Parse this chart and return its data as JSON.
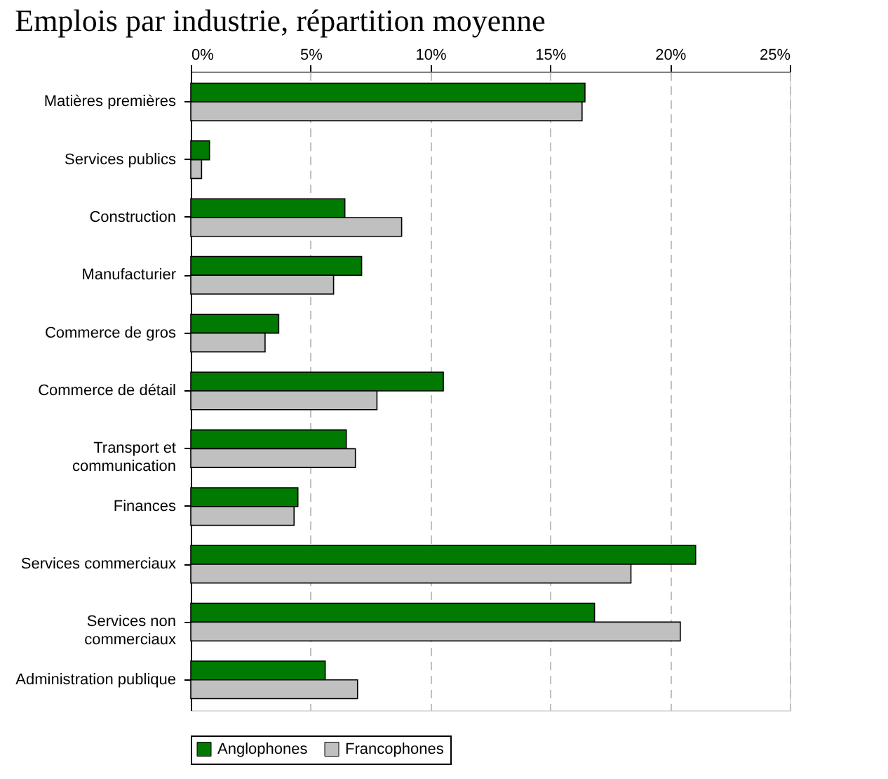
{
  "chart_data": {
    "type": "bar",
    "orientation": "horizontal",
    "title": "Emplois par industrie, répartition moyenne",
    "categories": [
      "Matières premières",
      "Services publics",
      "Construction",
      "Manufacturier",
      "Commerce de gros",
      "Commerce de détail",
      "Transport et\ncommunication",
      "Finances",
      "Services commerciaux",
      "Services non\ncommerciaux",
      "Administration publique"
    ],
    "series": [
      {
        "name": "Anglophones",
        "color": "#007a00",
        "values": [
          16.45,
          0.78,
          6.43,
          7.13,
          3.67,
          10.54,
          6.49,
          4.47,
          21.07,
          16.85,
          5.61
        ]
      },
      {
        "name": "Francophones",
        "color": "#c0c0c0",
        "values": [
          16.33,
          0.45,
          8.8,
          5.96,
          3.1,
          7.77,
          6.87,
          4.31,
          18.37,
          20.43,
          6.96
        ]
      }
    ],
    "xlim": [
      0,
      25
    ],
    "xticks": [
      {
        "value": 0,
        "label": "0%"
      },
      {
        "value": 5,
        "label": "5%"
      },
      {
        "value": 10,
        "label": "10%"
      },
      {
        "value": 15,
        "label": "15%"
      },
      {
        "value": 20,
        "label": "20%"
      },
      {
        "value": 25,
        "label": "25%"
      }
    ],
    "grid": "x",
    "legend": "bottom"
  }
}
